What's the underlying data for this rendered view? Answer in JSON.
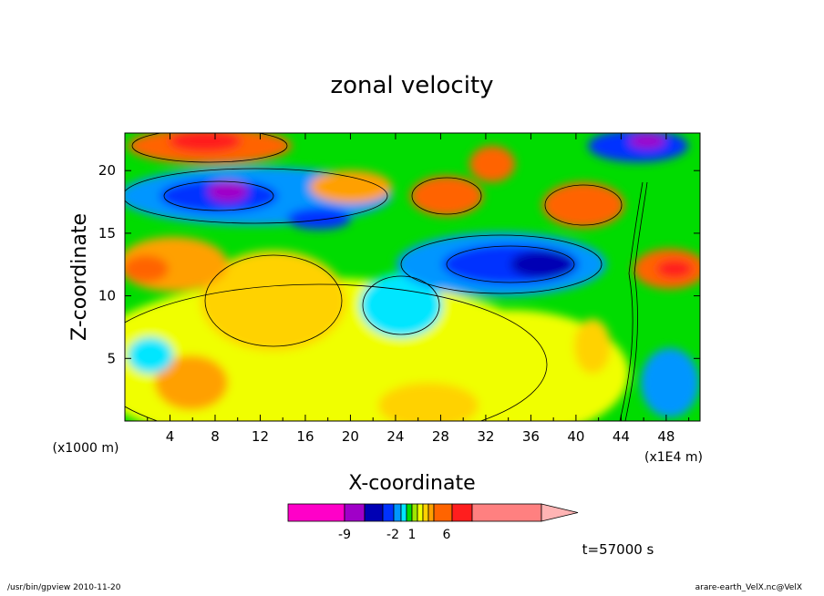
{
  "chart_data": {
    "type": "heatmap",
    "title": "zonal velocity",
    "xlabel": "X-coordinate",
    "ylabel": "Z-coordinate",
    "x_unit_label": "(x1000 m)",
    "x_scale_label": "(x1E4 m)",
    "x_ticks": [
      "4",
      "8",
      "12",
      "16",
      "20",
      "24",
      "28",
      "32",
      "36",
      "40",
      "44",
      "48"
    ],
    "y_ticks": [
      "5",
      "10",
      "15",
      "20"
    ],
    "xlim": [
      0,
      51
    ],
    "ylim": [
      0,
      23
    ],
    "colorbar": {
      "colors": [
        "#ff00c8",
        "#a000c8",
        "#0000b4",
        "#0032ff",
        "#0096ff",
        "#00e6ff",
        "#00dc00",
        "#a0e600",
        "#f0ff00",
        "#ffd200",
        "#ffa000",
        "#ff6400",
        "#ff1e1e",
        "#ff8080",
        "#ffb4b4"
      ],
      "tick_labels": [
        "-9",
        "-2",
        "1",
        "6"
      ]
    },
    "time_label": "t=57000 s"
  },
  "footer": {
    "left": "/usr/bin/gpview  2010-11-20",
    "right": "arare-earth_VelX.nc@VelX"
  }
}
